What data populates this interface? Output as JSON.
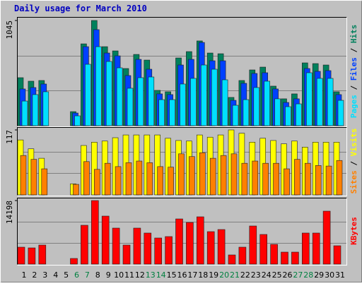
{
  "chart_data": [
    {
      "type": "bar",
      "title": "Daily usage for March 2010",
      "ylim": [
        0,
        1045
      ],
      "yticks": [
        1045
      ],
      "legend_separator": "/",
      "series": [
        {
          "name": "Hits",
          "color": "#00805c",
          "values": [
            477,
            442,
            449,
            0,
            0,
            140,
            813,
            1045,
            785,
            743,
            568,
            708,
            652,
            351,
            337,
            673,
            736,
            842,
            722,
            715,
            281,
            449,
            554,
            582,
            393,
            267,
            316,
            624,
            617,
            603,
            337
          ]
        },
        {
          "name": "Files",
          "color": "#0040ff",
          "values": [
            365,
            379,
            414,
            0,
            0,
            126,
            785,
            954,
            722,
            694,
            498,
            659,
            561,
            316,
            309,
            603,
            659,
            827,
            645,
            645,
            252,
            421,
            519,
            526,
            365,
            231,
            267,
            568,
            540,
            547,
            309
          ]
        },
        {
          "name": "Pages",
          "color": "#00e0ff",
          "values": [
            245,
            309,
            337,
            0,
            0,
            98,
            610,
            785,
            638,
            575,
            372,
            477,
            484,
            259,
            259,
            414,
            470,
            603,
            561,
            456,
            203,
            259,
            379,
            442,
            267,
            189,
            217,
            526,
            470,
            470,
            252
          ]
        }
      ]
    },
    {
      "type": "bar",
      "ylim": [
        0,
        117
      ],
      "yticks": [
        117
      ],
      "legend_separator": "/",
      "series": [
        {
          "name": "Visits",
          "color": "#ffff00",
          "values": [
            99,
            83,
            66,
            0,
            0,
            20,
            89,
            95,
            97,
            103,
            108,
            108,
            108,
            108,
            102,
            98,
            97,
            108,
            104,
            108,
            117,
            111,
            95,
            102,
            98,
            92,
            97,
            86,
            95,
            95,
            95
          ]
        },
        {
          "name": "Sites",
          "color": "#ff8000",
          "values": [
            71,
            64,
            47,
            0,
            0,
            19,
            60,
            46,
            57,
            51,
            58,
            61,
            58,
            51,
            50,
            74,
            69,
            76,
            66,
            71,
            74,
            57,
            61,
            57,
            57,
            47,
            64,
            57,
            53,
            52,
            62
          ]
        }
      ]
    },
    {
      "type": "bar",
      "ylim": [
        0,
        14198
      ],
      "yticks": [
        14198
      ],
      "categories": [
        "1",
        "2",
        "3",
        "4",
        "5",
        "6",
        "7",
        "8",
        "9",
        "10",
        "11",
        "12",
        "13",
        "14",
        "15",
        "16",
        "17",
        "18",
        "19",
        "20",
        "21",
        "22",
        "23",
        "24",
        "25",
        "26",
        "27",
        "28",
        "29",
        "30",
        "31"
      ],
      "category_colors": [
        "#000000",
        "#000000",
        "#000000",
        "#000000",
        "#000000",
        "#008040",
        "#008040",
        "#000000",
        "#000000",
        "#000000",
        "#000000",
        "#000000",
        "#008040",
        "#008040",
        "#000000",
        "#000000",
        "#000000",
        "#000000",
        "#000000",
        "#008040",
        "#008040",
        "#000000",
        "#000000",
        "#000000",
        "#000000",
        "#000000",
        "#008040",
        "#008040",
        "#000000",
        "#000000",
        "#000000"
      ],
      "series": [
        {
          "name": "KBytes",
          "color": "#ff0000",
          "values": [
            3786,
            3628,
            4259,
            0,
            0,
            1262,
            8678,
            14198,
            10727,
            8046,
            4259,
            8046,
            6942,
            5837,
            6153,
            10096,
            9307,
            10569,
            7257,
            7730,
            2051,
            3786,
            8519,
            6626,
            4417,
            2682,
            2682,
            6942,
            6942,
            11831,
            4102
          ]
        }
      ]
    }
  ]
}
